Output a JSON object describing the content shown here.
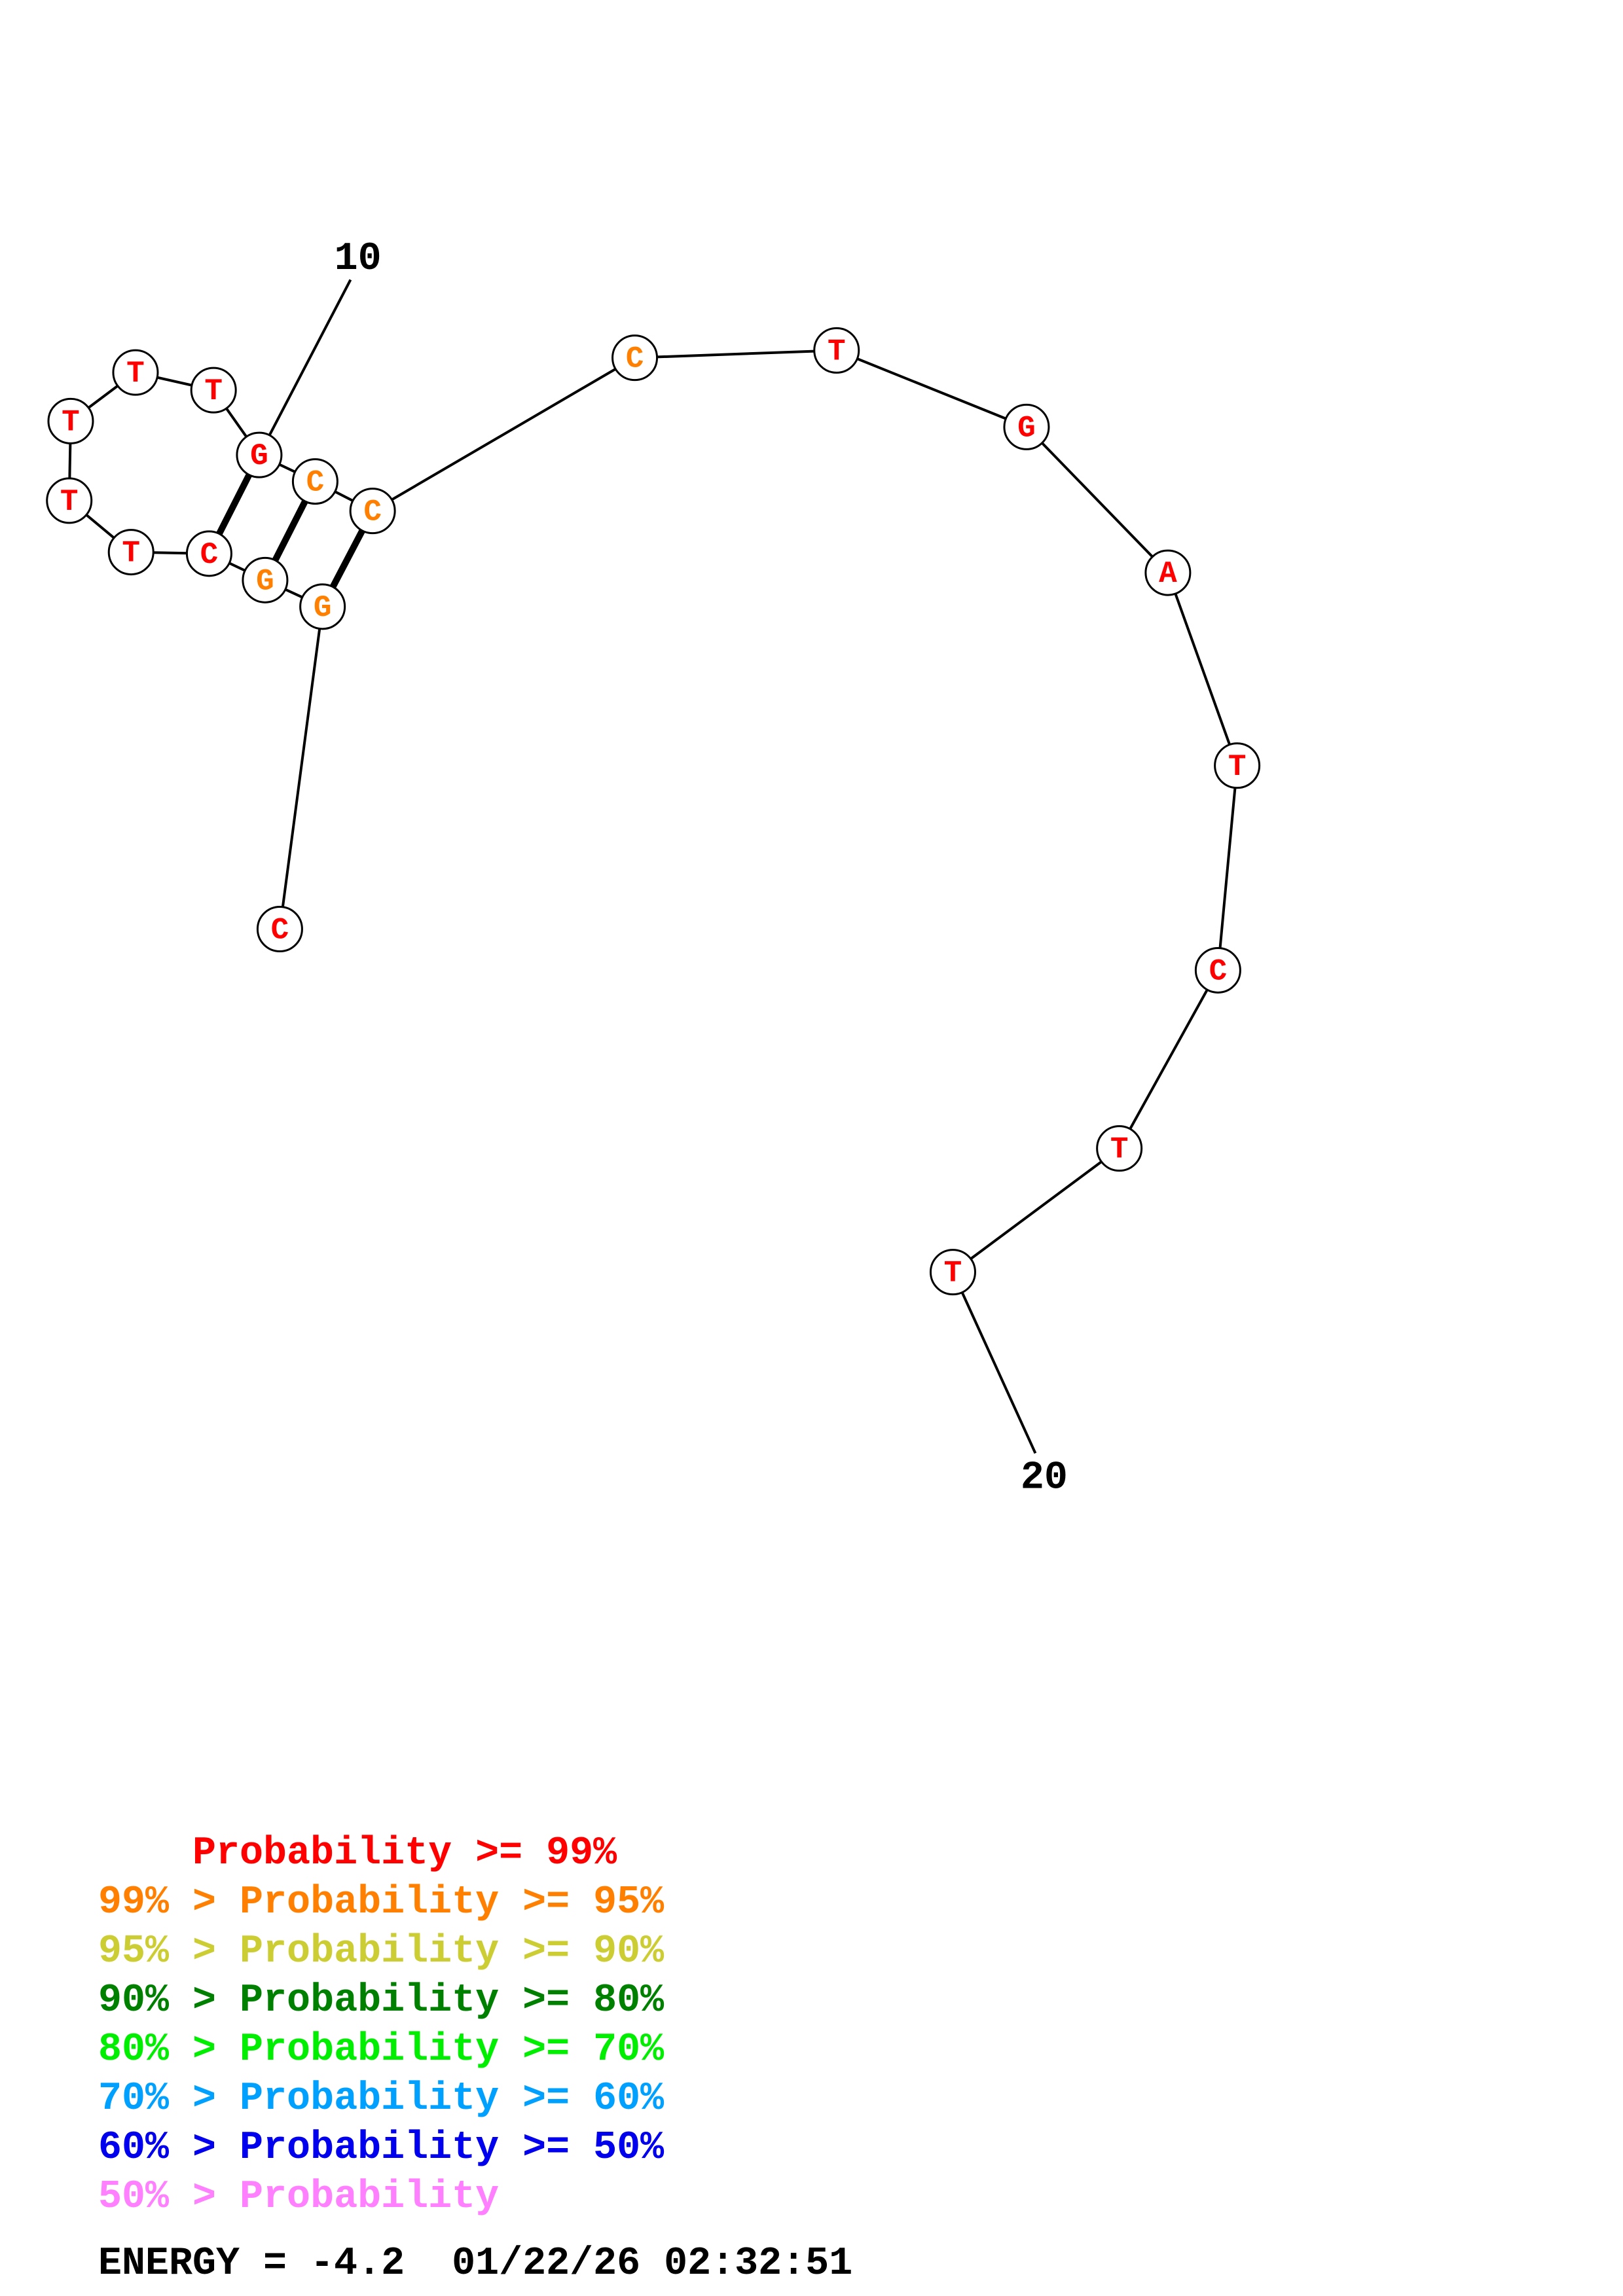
{
  "structure": {
    "bases": [
      {
        "letter": "C",
        "color": "#ff0000"
      },
      {
        "letter": "G",
        "color": "#ff8000"
      },
      {
        "letter": "G",
        "color": "#ff8000"
      },
      {
        "letter": "C",
        "color": "#ff0000"
      },
      {
        "letter": "T",
        "color": "#ff0000"
      },
      {
        "letter": "T",
        "color": "#ff0000"
      },
      {
        "letter": "T",
        "color": "#ff0000"
      },
      {
        "letter": "T",
        "color": "#ff0000"
      },
      {
        "letter": "T",
        "color": "#ff0000"
      },
      {
        "letter": "G",
        "color": "#ff0000"
      },
      {
        "letter": "C",
        "color": "#ff8000"
      },
      {
        "letter": "C",
        "color": "#ff8000"
      },
      {
        "letter": "C",
        "color": "#ff8000"
      },
      {
        "letter": "T",
        "color": "#ff0000"
      },
      {
        "letter": "G",
        "color": "#ff0000"
      },
      {
        "letter": "A",
        "color": "#ff0000"
      },
      {
        "letter": "T",
        "color": "#ff0000"
      },
      {
        "letter": "C",
        "color": "#ff0000"
      },
      {
        "letter": "T",
        "color": "#ff0000"
      },
      {
        "letter": "T",
        "color": "#ff0000"
      }
    ],
    "pairs": [
      [
        2,
        12
      ],
      [
        3,
        11
      ],
      [
        4,
        10
      ]
    ],
    "position_labels": [
      {
        "text": "10",
        "base": 10
      },
      {
        "text": "20",
        "base": 20
      }
    ]
  },
  "legend": [
    {
      "prefix": "    ",
      "label": "Probability",
      "suffix": " >= 99%",
      "color": "#ff0000"
    },
    {
      "prefix": "99% > ",
      "label": "Probability",
      "suffix": " >= 95%",
      "color": "#ff8000"
    },
    {
      "prefix": "95% > ",
      "label": "Probability",
      "suffix": " >= 90%",
      "color": "#cccc33"
    },
    {
      "prefix": "90% > ",
      "label": "Probability",
      "suffix": " >= 80%",
      "color": "#008000"
    },
    {
      "prefix": "80% > ",
      "label": "Probability",
      "suffix": " >= 70%",
      "color": "#00ee00"
    },
    {
      "prefix": "70% > ",
      "label": "Probability",
      "suffix": " >= 60%",
      "color": "#00a0ff"
    },
    {
      "prefix": "60% > ",
      "label": "Probability",
      "suffix": " >= 50%",
      "color": "#0000ee"
    },
    {
      "prefix": "50% > ",
      "label": "Probability",
      "suffix": "",
      "color": "#ff80ff"
    }
  ],
  "footer": {
    "energy_label": "ENERGY = -4.2",
    "timestamp": "01/22/26 02:32:51"
  }
}
